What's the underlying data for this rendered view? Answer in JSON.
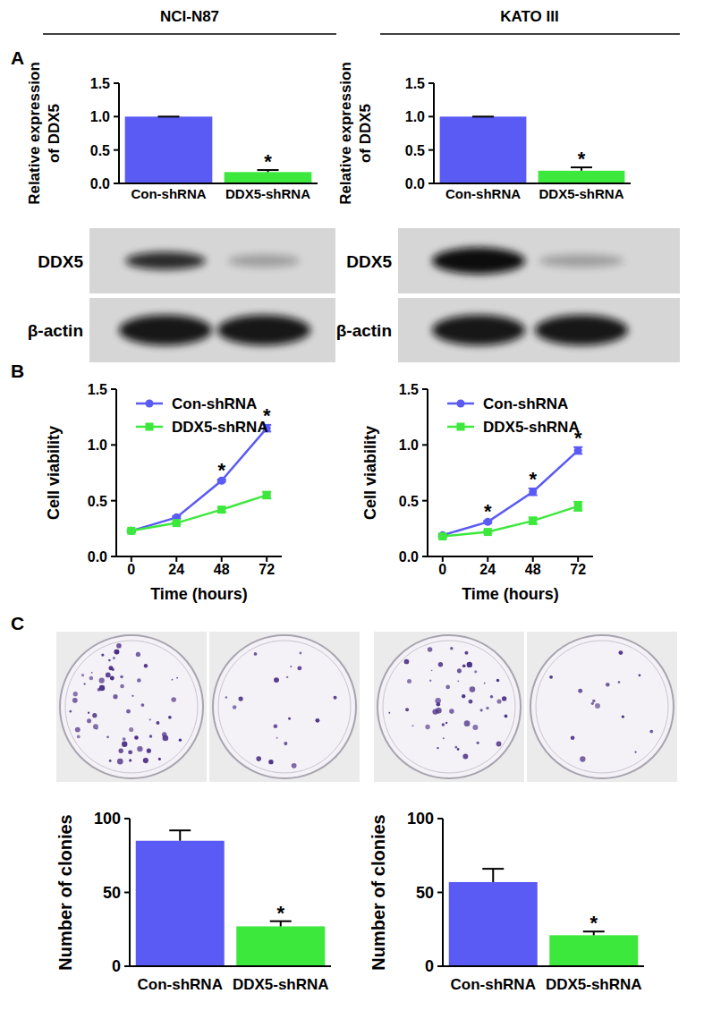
{
  "figure": {
    "columns": [
      "NCI-N87",
      "KATO III"
    ],
    "panel_labels": [
      "A",
      "B",
      "C"
    ],
    "blots": [
      {
        "rows": [
          "DDX5",
          "β-actin"
        ]
      },
      {
        "rows": [
          "DDX5",
          "β-actin"
        ]
      }
    ]
  },
  "chart_data": [
    {
      "type": "bar",
      "categories": [
        "Con-shRNA",
        "DDX5-shRNA"
      ],
      "values": [
        1.0,
        0.17
      ],
      "errors": [
        0,
        0.03
      ],
      "colors": [
        "#5a5af5",
        "#3de83d"
      ],
      "annotations": [
        null,
        "*"
      ],
      "y_label": [
        "Relative expression",
        "of DDX5"
      ],
      "ylim": [
        0,
        1.5
      ],
      "yticks": [
        {
          "value": 0,
          "label": "0.0"
        },
        0.5,
        {
          "value": 1,
          "label": "1.0"
        },
        1.5
      ]
    },
    {
      "type": "bar",
      "categories": [
        "Con-shRNA",
        "DDX5-shRNA"
      ],
      "values": [
        1.0,
        0.19
      ],
      "errors": [
        0,
        0.05
      ],
      "colors": [
        "#5a5af5",
        "#3de83d"
      ],
      "annotations": [
        null,
        "*"
      ],
      "y_label": [
        "Relative expression",
        "of DDX5"
      ],
      "ylim": [
        0,
        1.5
      ],
      "yticks": [
        {
          "value": 0,
          "label": "0.0"
        },
        0.5,
        {
          "value": 1,
          "label": "1.0"
        },
        1.5
      ]
    },
    {
      "type": "line",
      "x": [
        0,
        24,
        48,
        72
      ],
      "xlim": [
        -8,
        80
      ],
      "xticks": [
        0,
        24,
        48,
        72
      ],
      "ylim": [
        0,
        1.5
      ],
      "yticks": [
        {
          "value": 0,
          "label": "0.0"
        },
        0.5,
        {
          "value": 1,
          "label": "1.0"
        },
        1.5
      ],
      "x_label": "Time (hours)",
      "y_label": [
        "Cell viability"
      ],
      "legend": "upper left",
      "annotations": [
        null,
        null,
        "*",
        "*"
      ],
      "series": [
        {
          "name": "Con-shRNA",
          "color": "#5a5af5",
          "marker": "circle",
          "values": [
            0.23,
            0.35,
            0.68,
            1.15
          ],
          "errors": [
            0.01,
            0.01,
            0.01,
            0.03
          ]
        },
        {
          "name": "DDX5-shRNA",
          "color": "#3de83d",
          "marker": "square",
          "values": [
            0.23,
            0.3,
            0.42,
            0.55
          ],
          "errors": [
            0.01,
            0.01,
            0.02,
            0.03
          ]
        }
      ]
    },
    {
      "type": "line",
      "x": [
        0,
        24,
        48,
        72
      ],
      "xlim": [
        -8,
        80
      ],
      "xticks": [
        0,
        24,
        48,
        72
      ],
      "ylim": [
        0,
        1.5
      ],
      "yticks": [
        {
          "value": 0,
          "label": "0.0"
        },
        0.5,
        {
          "value": 1,
          "label": "1.0"
        },
        1.5
      ],
      "x_label": "Time (hours)",
      "y_label": [
        "Cell viability"
      ],
      "legend": "upper left",
      "annotations": [
        null,
        "*",
        "*",
        "*"
      ],
      "series": [
        {
          "name": "Con-shRNA",
          "color": "#5a5af5",
          "marker": "circle",
          "values": [
            0.19,
            0.31,
            0.58,
            0.95
          ],
          "errors": [
            0.01,
            0.01,
            0.03,
            0.03
          ]
        },
        {
          "name": "DDX5-shRNA",
          "color": "#3de83d",
          "marker": "square",
          "values": [
            0.18,
            0.22,
            0.32,
            0.45
          ],
          "errors": [
            0.01,
            0.01,
            0.03,
            0.04
          ]
        }
      ]
    },
    {
      "type": "bar",
      "categories": [
        "Con-shRNA",
        "DDX5-shRNA"
      ],
      "values": [
        85,
        27
      ],
      "errors": [
        7,
        3.5
      ],
      "colors": [
        "#5a5af5",
        "#3de83d"
      ],
      "annotations": [
        null,
        "*"
      ],
      "y_label": [
        "Number of clonies"
      ],
      "ylim": [
        0,
        100
      ],
      "yticks": [
        0,
        50,
        100
      ]
    },
    {
      "type": "bar",
      "categories": [
        "Con-shRNA",
        "DDX5-shRNA"
      ],
      "values": [
        57,
        21
      ],
      "errors": [
        9,
        2.5
      ],
      "colors": [
        "#5a5af5",
        "#3de83d"
      ],
      "annotations": [
        null,
        "*"
      ],
      "y_label": [
        "Number of clonies"
      ],
      "ylim": [
        0,
        100
      ],
      "yticks": [
        0,
        50,
        100
      ]
    }
  ]
}
